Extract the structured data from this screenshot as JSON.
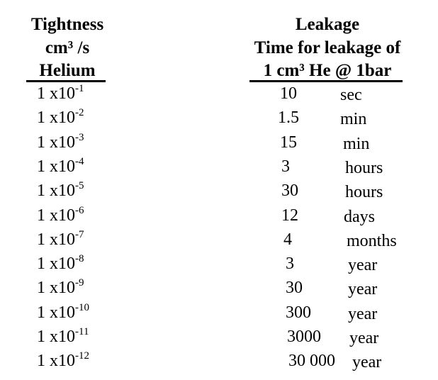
{
  "table": {
    "header": {
      "left": [
        "Tightness",
        "cm³ /s",
        "Helium"
      ],
      "right": [
        "Leakage",
        "Time for leakage of",
        "1 cm³ He @ 1bar"
      ]
    },
    "rows": [
      [
        "1 x10",
        "-1",
        "10",
        "sec"
      ],
      [
        "1 x10",
        "-2",
        "1.5",
        "min"
      ],
      [
        "1 x10",
        "-3",
        "15",
        "min"
      ],
      [
        "1 x10",
        "-4",
        "3",
        "hours"
      ],
      [
        "1 x10",
        "-5",
        "30",
        "hours"
      ],
      [
        "1 x10",
        "-6",
        "12",
        "days"
      ],
      [
        "1 x10",
        "-7",
        "4",
        "months"
      ],
      [
        "1 x10",
        "-8",
        "3",
        "year"
      ],
      [
        "1 x10",
        "-9",
        "30",
        "year"
      ],
      [
        "1 x10",
        "-10",
        "300",
        "year"
      ],
      [
        "1 x10",
        "-11",
        "3000",
        "year"
      ],
      [
        "1 x10",
        "-12",
        "30 000",
        "year"
      ]
    ]
  }
}
